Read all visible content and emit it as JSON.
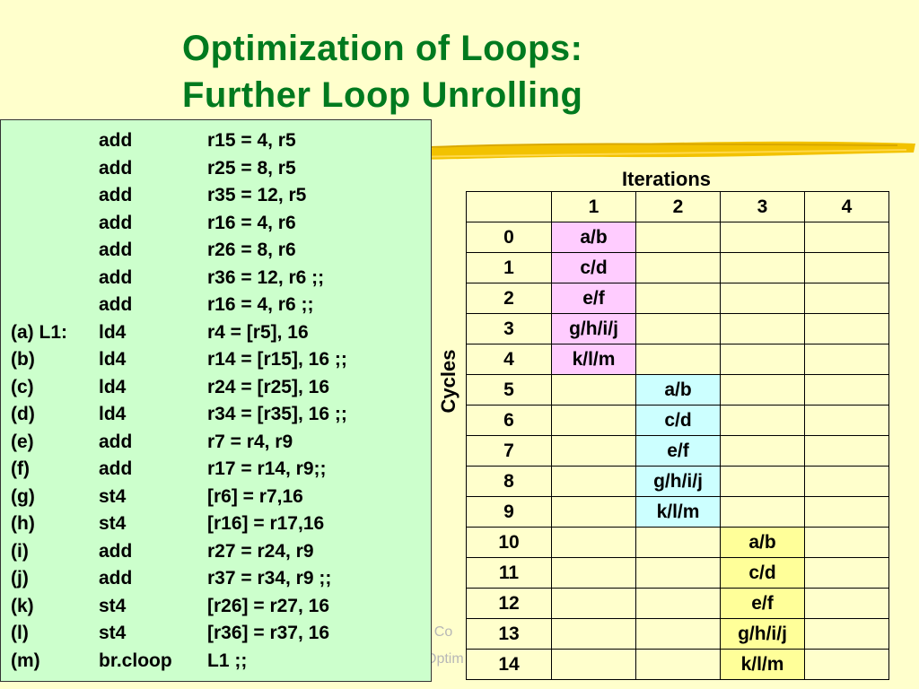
{
  "title": {
    "line1": "Optimization of Loops:",
    "line2": "Further Loop Unrolling"
  },
  "code": [
    {
      "label": "",
      "op": "add",
      "args": "r15 = 4, r5"
    },
    {
      "label": "",
      "op": "add",
      "args": "r25 = 8, r5"
    },
    {
      "label": "",
      "op": "add",
      "args": "r35 = 12, r5"
    },
    {
      "label": "",
      "op": "add",
      "args": "r16 = 4, r6"
    },
    {
      "label": "",
      "op": "add",
      "args": "r26 = 8, r6"
    },
    {
      "label": "",
      "op": "add",
      "args": "r36 = 12, r6 ;;"
    },
    {
      "label": "",
      "op": "add",
      "args": "r16 = 4, r6 ;;"
    },
    {
      "label": "(a) L1:",
      "op": "ld4",
      "args": "r4 = [r5], 16"
    },
    {
      "label": "(b)",
      "op": "ld4",
      "args": "r14 = [r15], 16  ;;"
    },
    {
      "label": "(c)",
      "op": "ld4",
      "args": "r24 = [r25], 16"
    },
    {
      "label": "(d)",
      "op": "ld4",
      "args": "r34 = [r35], 16 ;;"
    },
    {
      "label": "(e)",
      "op": "add",
      "args": "r7 = r4, r9"
    },
    {
      "label": "(f)",
      "op": "add",
      "args": "r17 = r14, r9;;"
    },
    {
      "label": "(g)",
      "op": "st4",
      "args": "[r6] = r7,16"
    },
    {
      "label": "(h)",
      "op": "st4",
      "args": "[r16] = r17,16"
    },
    {
      "label": "(i)",
      "op": "add",
      "args": "r27 = r24, r9"
    },
    {
      "label": "(j)",
      "op": "add",
      "args": "r37 = r34, r9 ;;"
    },
    {
      "label": "(k)",
      "op": "st4",
      "args": "[r26] = r27, 16"
    },
    {
      "label": "(l)",
      "op": "st4",
      "args": "[r36] = r37, 16"
    },
    {
      "label": "(m)",
      "op": "br.cloop",
      "args": "L1 ;;"
    }
  ],
  "schedule": {
    "iterations_label": "Iterations",
    "cycles_label": "Cycles",
    "columns": [
      "1",
      "2",
      "3",
      "4"
    ],
    "rows": [
      {
        "cycle": "0",
        "cells": [
          "a/b",
          "",
          "",
          ""
        ]
      },
      {
        "cycle": "1",
        "cells": [
          "c/d",
          "",
          "",
          ""
        ]
      },
      {
        "cycle": "2",
        "cells": [
          "e/f",
          "",
          "",
          ""
        ]
      },
      {
        "cycle": "3",
        "cells": [
          "g/h/i/j",
          "",
          "",
          ""
        ]
      },
      {
        "cycle": "4",
        "cells": [
          "k/l/m",
          "",
          "",
          ""
        ]
      },
      {
        "cycle": "5",
        "cells": [
          "",
          "a/b",
          "",
          ""
        ]
      },
      {
        "cycle": "6",
        "cells": [
          "",
          "c/d",
          "",
          ""
        ]
      },
      {
        "cycle": "7",
        "cells": [
          "",
          "e/f",
          "",
          ""
        ]
      },
      {
        "cycle": "8",
        "cells": [
          "",
          "g/h/i/j",
          "",
          ""
        ]
      },
      {
        "cycle": "9",
        "cells": [
          "",
          "k/l/m",
          "",
          ""
        ]
      },
      {
        "cycle": "10",
        "cells": [
          "",
          "",
          "a/b",
          ""
        ]
      },
      {
        "cycle": "11",
        "cells": [
          "",
          "",
          "c/d",
          ""
        ]
      },
      {
        "cycle": "12",
        "cells": [
          "",
          "",
          "e/f",
          ""
        ]
      },
      {
        "cycle": "13",
        "cells": [
          "",
          "",
          "g/h/i/j",
          ""
        ]
      },
      {
        "cycle": "14",
        "cells": [
          "",
          "",
          "k/l/m",
          ""
        ]
      }
    ],
    "iteration_colors": [
      "#ffccff",
      "#ccffff",
      "#ffff99",
      ""
    ]
  },
  "footer": {
    "line1": "- Co",
    "line2": "Optim"
  },
  "colors": {
    "background": "#ffffcc",
    "title": "#007a1f",
    "code_box": "#ccffcc",
    "brush": "#f2c200"
  }
}
